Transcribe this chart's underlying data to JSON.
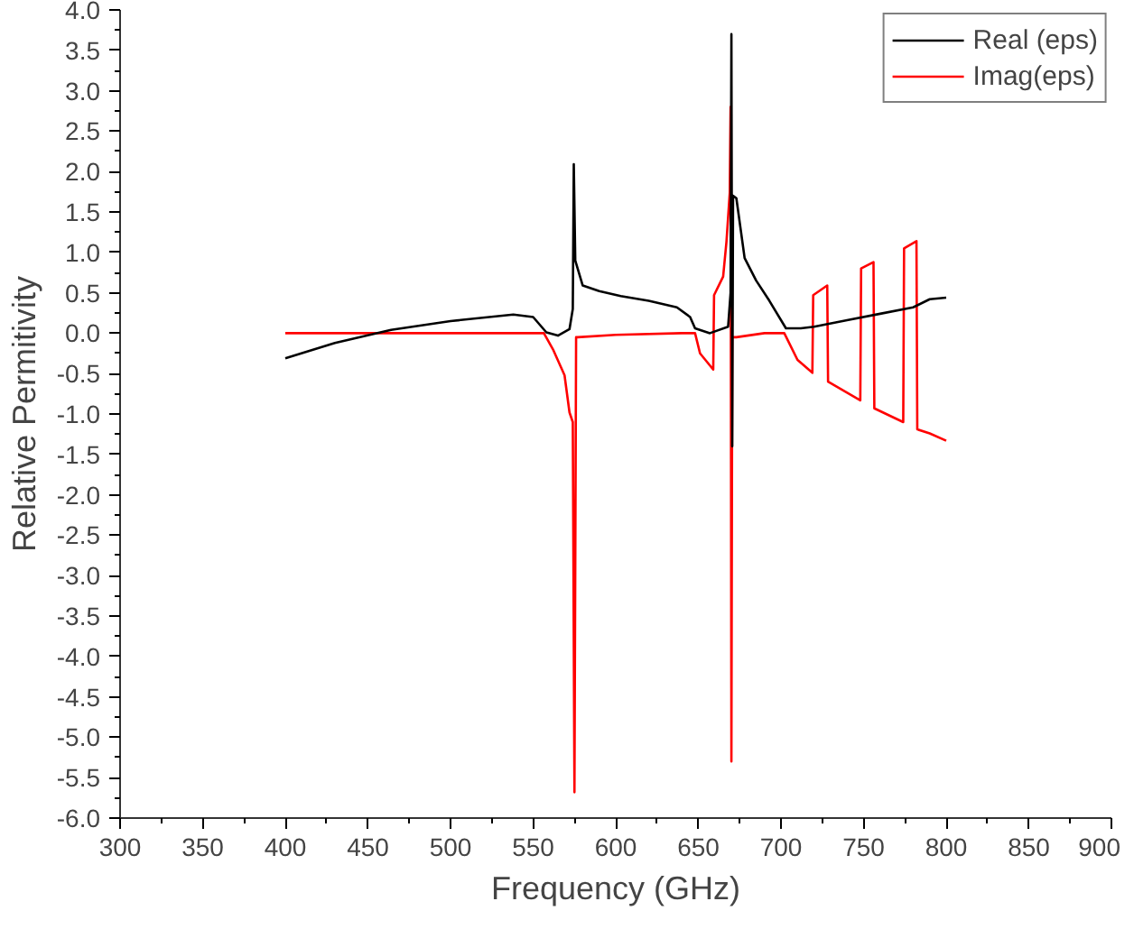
{
  "chart_data": {
    "type": "line",
    "xlabel": "Frequency (GHz)",
    "ylabel": "Relative Permitivity",
    "xlim": [
      300,
      900
    ],
    "xticks": [
      300,
      350,
      400,
      450,
      500,
      550,
      600,
      650,
      700,
      750,
      800,
      850,
      900
    ],
    "ylim": [
      -6.0,
      4.0
    ],
    "yticks": [
      {
        "value": -6,
        "label": "-6.0"
      },
      {
        "value": -5.5,
        "label": "-5.5"
      },
      {
        "value": -5,
        "label": "-5.0"
      },
      {
        "value": -4.5,
        "label": "-4.5"
      },
      {
        "value": -4,
        "label": "-4.0"
      },
      {
        "value": -3.5,
        "label": "-3.5"
      },
      {
        "value": -3,
        "label": "-3.0"
      },
      {
        "value": -2.5,
        "label": "-2.5"
      },
      {
        "value": -2,
        "label": "-2.0"
      },
      {
        "value": -1.5,
        "label": "-1.5"
      },
      {
        "value": -1,
        "label": "-1.0"
      },
      {
        "value": -0.5,
        "label": "-0.5"
      },
      {
        "value": 0,
        "label": "0.0"
      },
      {
        "value": 0.5,
        "label": "0.5"
      },
      {
        "value": 1,
        "label": "1.0"
      },
      {
        "value": 1.5,
        "label": "1.5"
      },
      {
        "value": 2,
        "label": "2.0"
      },
      {
        "value": 2.5,
        "label": "2.5"
      },
      {
        "value": 3,
        "label": "3.0"
      },
      {
        "value": 3.5,
        "label": "3.5"
      },
      {
        "value": 4,
        "label": "4.0"
      }
    ],
    "grid": false,
    "legend": "top right",
    "marker": "none",
    "line_style": "solid",
    "series": [
      {
        "name": "Real (eps)",
        "color": "#000000",
        "x": [
          400,
          430,
          464,
          500,
          538,
          550,
          558,
          565,
          572,
          574,
          574.6,
          575.5,
          580,
          590,
          603,
          620,
          637,
          645,
          648,
          657,
          668,
          669.5,
          670,
          670.5,
          671,
          673,
          678,
          685,
          693,
          703,
          712,
          720,
          740,
          760,
          780,
          790,
          800
        ],
        "values": [
          -0.31,
          -0.12,
          0.04,
          0.15,
          0.23,
          0.2,
          0.01,
          -0.03,
          0.05,
          0.3,
          2.09,
          0.9,
          0.59,
          0.52,
          0.46,
          0.4,
          0.32,
          0.2,
          0.06,
          0.0,
          0.08,
          0.5,
          3.7,
          -1.4,
          1.7,
          1.67,
          0.93,
          0.65,
          0.4,
          0.06,
          0.06,
          0.08,
          0.16,
          0.24,
          0.32,
          0.42,
          0.44
        ]
      },
      {
        "name": "Imag(eps)",
        "color": "#ff0000",
        "x": [
          400,
          556.5,
          562,
          569,
          572,
          574,
          575,
          576,
          577,
          600,
          640,
          648,
          651,
          659,
          659.5,
          665,
          667,
          669,
          669.5,
          670,
          670.5,
          673,
          690,
          702,
          710,
          719,
          719.5,
          728,
          728.5,
          748,
          748.5,
          756,
          756.5,
          774,
          774.5,
          782,
          782.5,
          790,
          800
        ],
        "values": [
          0,
          0,
          -0.2,
          -0.52,
          -0.98,
          -1.1,
          -5.68,
          -0.05,
          -0.05,
          -0.02,
          0,
          0,
          -0.25,
          -0.45,
          0.47,
          0.7,
          1.13,
          1.74,
          2.8,
          -5.3,
          -0.05,
          -0.05,
          0,
          0,
          -0.33,
          -0.49,
          0.47,
          0.59,
          -0.6,
          -0.83,
          0.8,
          0.88,
          -0.93,
          -1.1,
          1.05,
          1.14,
          -1.19,
          -1.24,
          -1.33
        ]
      }
    ]
  }
}
